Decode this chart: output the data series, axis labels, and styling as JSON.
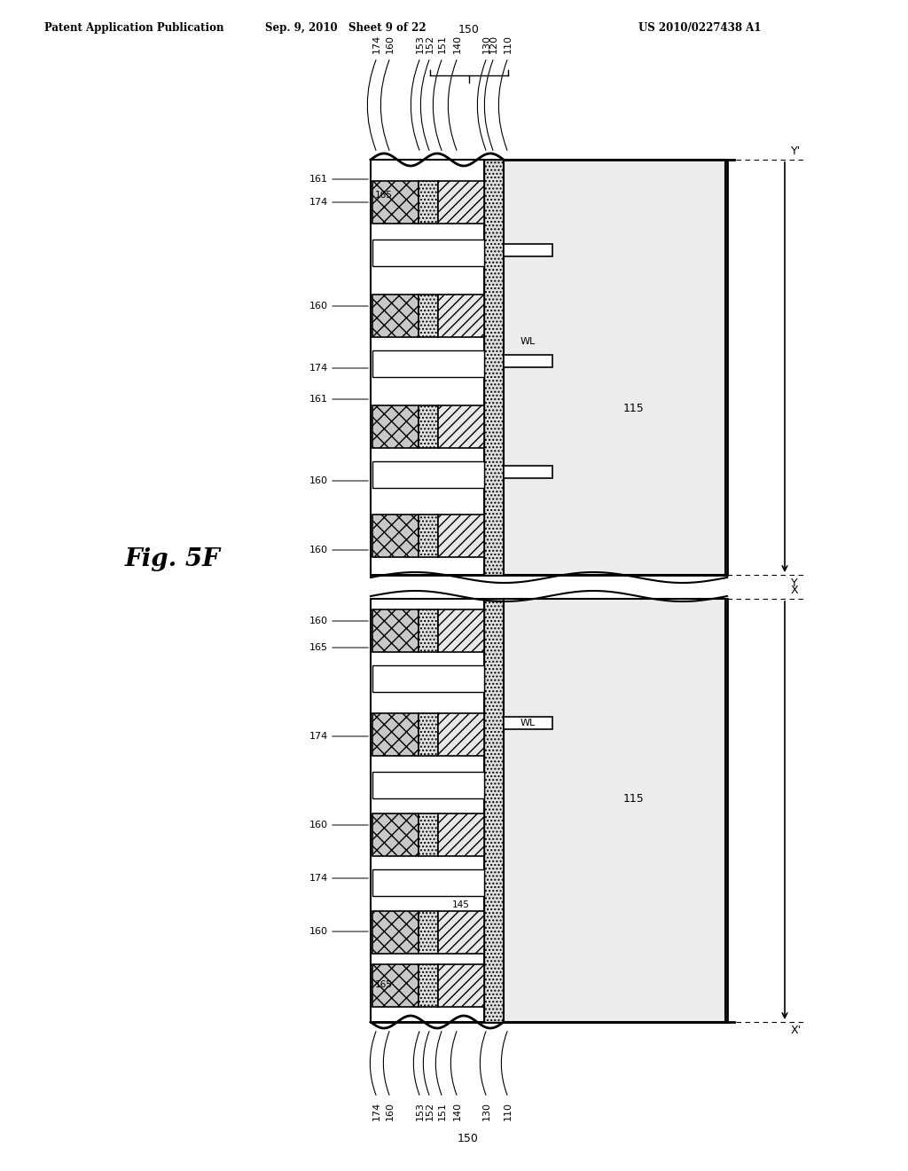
{
  "header_left": "Patent Application Publication",
  "header_mid": "Sep. 9, 2010   Sheet 9 of 22",
  "header_right": "US 2010/0227438 A1",
  "fig_label": "Fig. 5F",
  "bg_color": "#ffffff"
}
